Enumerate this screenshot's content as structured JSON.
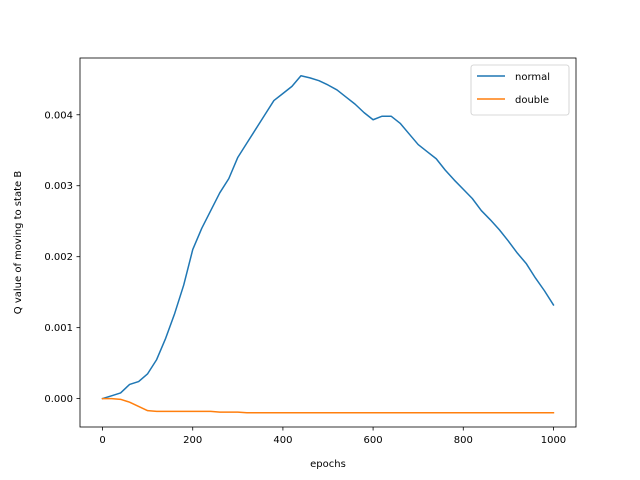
{
  "chart_data": {
    "type": "line",
    "title": "",
    "xlabel": "epochs",
    "ylabel": "Q value of moving to state B",
    "xlim": [
      -50,
      1050
    ],
    "ylim": [
      -0.0004,
      0.0048
    ],
    "x_ticks": [
      0,
      200,
      400,
      600,
      800,
      1000
    ],
    "x_tick_labels": [
      "0",
      "200",
      "400",
      "600",
      "800",
      "1000"
    ],
    "y_ticks": [
      0.0,
      0.001,
      0.002,
      0.003,
      0.004
    ],
    "y_tick_labels": [
      "0.000",
      "0.001",
      "0.002",
      "0.003",
      "0.004"
    ],
    "grid": false,
    "legend_position": "top-right",
    "series": [
      {
        "name": "normal",
        "color": "#1f77b4",
        "x": [
          0,
          20,
          40,
          60,
          80,
          100,
          120,
          140,
          160,
          180,
          200,
          220,
          240,
          260,
          280,
          300,
          320,
          340,
          360,
          380,
          400,
          420,
          440,
          460,
          480,
          500,
          520,
          540,
          560,
          580,
          600,
          620,
          640,
          660,
          680,
          700,
          720,
          740,
          760,
          780,
          800,
          820,
          840,
          860,
          880,
          900,
          920,
          940,
          960,
          980,
          1000
        ],
        "y": [
          0.0,
          4e-05,
          8e-05,
          0.0002,
          0.00024,
          0.00035,
          0.00055,
          0.00085,
          0.0012,
          0.0016,
          0.0021,
          0.0024,
          0.00265,
          0.0029,
          0.0031,
          0.0034,
          0.0036,
          0.0038,
          0.004,
          0.0042,
          0.0043,
          0.0044,
          0.00455,
          0.00452,
          0.00448,
          0.00442,
          0.00435,
          0.00425,
          0.00415,
          0.00403,
          0.00393,
          0.00398,
          0.00398,
          0.00388,
          0.00373,
          0.00358,
          0.00348,
          0.00338,
          0.00322,
          0.00308,
          0.00295,
          0.00282,
          0.00265,
          0.00252,
          0.00238,
          0.00222,
          0.00205,
          0.0019,
          0.0017,
          0.00152,
          0.00132
        ]
      },
      {
        "name": "double",
        "color": "#ff7f0e",
        "x": [
          0,
          20,
          40,
          60,
          80,
          100,
          120,
          140,
          160,
          180,
          200,
          220,
          240,
          260,
          280,
          300,
          320,
          400,
          500,
          600,
          700,
          800,
          900,
          1000
        ],
        "y": [
          0.0,
          0.0,
          -1e-05,
          -5e-05,
          -0.00011,
          -0.00017,
          -0.00018,
          -0.00018,
          -0.00018,
          -0.00018,
          -0.00018,
          -0.00018,
          -0.00018,
          -0.00019,
          -0.00019,
          -0.00019,
          -0.0002,
          -0.0002,
          -0.0002,
          -0.0002,
          -0.0002,
          -0.0002,
          -0.0002,
          -0.0002
        ]
      }
    ]
  }
}
